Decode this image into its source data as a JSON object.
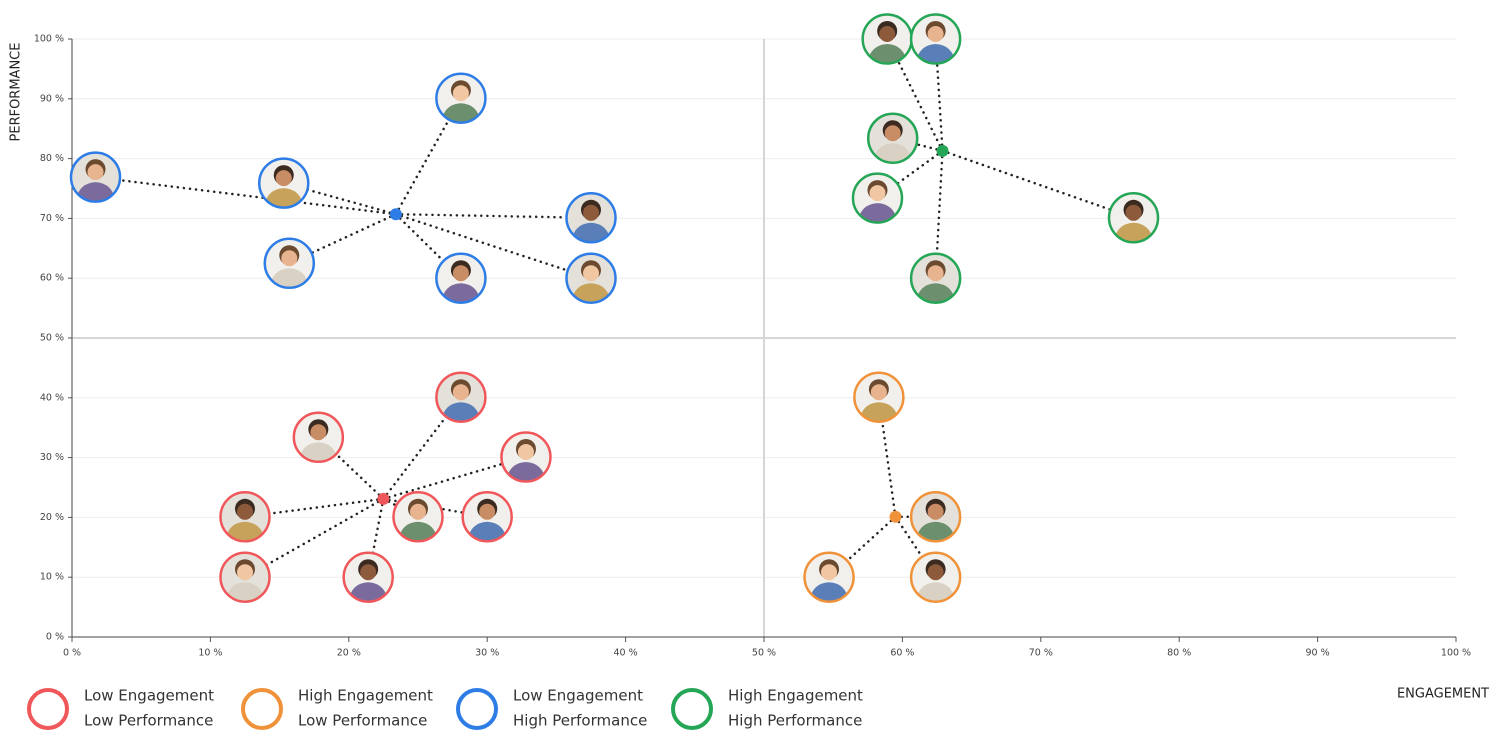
{
  "chart_data": {
    "type": "scatter",
    "x_label": "ENGAGEMENT",
    "y_label": "PERFORMANCE",
    "xlim": [
      0,
      100
    ],
    "ylim": [
      0,
      100
    ],
    "xticks": [
      {
        "value": 0,
        "label": "0 %"
      },
      {
        "value": 10,
        "label": "10 %"
      },
      {
        "value": 20,
        "label": "20 %"
      },
      {
        "value": 30,
        "label": "30 %"
      },
      {
        "value": 40,
        "label": "40 %"
      },
      {
        "value": 50,
        "label": "50 %"
      },
      {
        "value": 60,
        "label": "60 %"
      },
      {
        "value": 70,
        "label": "70 %"
      },
      {
        "value": 80,
        "label": "80 %"
      },
      {
        "value": 90,
        "label": "90 %"
      },
      {
        "value": 100,
        "label": "100 %"
      }
    ],
    "yticks": [
      {
        "value": 0,
        "label": "0 %"
      },
      {
        "value": 10,
        "label": "10 %"
      },
      {
        "value": 20,
        "label": "20 %"
      },
      {
        "value": 30,
        "label": "30 %"
      },
      {
        "value": 40,
        "label": "40 %"
      },
      {
        "value": 50,
        "label": "50 %"
      },
      {
        "value": 60,
        "label": "60 %"
      },
      {
        "value": 70,
        "label": "70 %"
      },
      {
        "value": 80,
        "label": "80 %"
      },
      {
        "value": 90,
        "label": "90 %"
      },
      {
        "value": 100,
        "label": "100 %"
      }
    ],
    "grid": true,
    "series": [
      {
        "name": [
          "Low Engagement",
          "Low Performance"
        ],
        "color": "#f0575a",
        "center": {
          "x": 22.5,
          "y": 23.1
        },
        "x": [
          28.1,
          17.8,
          32.8,
          12.5,
          25.0,
          30.0,
          12.5,
          21.4
        ],
        "values": [
          40.1,
          33.4,
          30.1,
          20.1,
          20.1,
          20.1,
          10.0,
          10.0
        ]
      },
      {
        "name": [
          "High Engagement",
          "Low Performance"
        ],
        "color": "#f0923a",
        "center": {
          "x": 59.5,
          "y": 20.1
        },
        "x": [
          58.3,
          62.4,
          54.7,
          62.4
        ],
        "values": [
          40.1,
          20.1,
          10.0,
          10.0
        ]
      },
      {
        "name": [
          "Low Engagement",
          "High Performance"
        ],
        "color": "#2e7de6",
        "center": {
          "x": 23.4,
          "y": 70.7
        },
        "x": [
          1.7,
          15.3,
          28.1,
          37.5,
          15.7,
          28.1,
          37.5
        ],
        "values": [
          76.9,
          75.9,
          90.1,
          70.1,
          62.5,
          60.0,
          60.0
        ]
      },
      {
        "name": [
          "High Engagement",
          "High Performance"
        ],
        "color": "#25a656",
        "center": {
          "x": 62.9,
          "y": 81.3
        },
        "x": [
          58.9,
          62.4,
          59.3,
          58.2,
          76.7,
          62.4
        ],
        "values": [
          100,
          100,
          83.4,
          73.4,
          70.1,
          60.0
        ]
      }
    ]
  }
}
